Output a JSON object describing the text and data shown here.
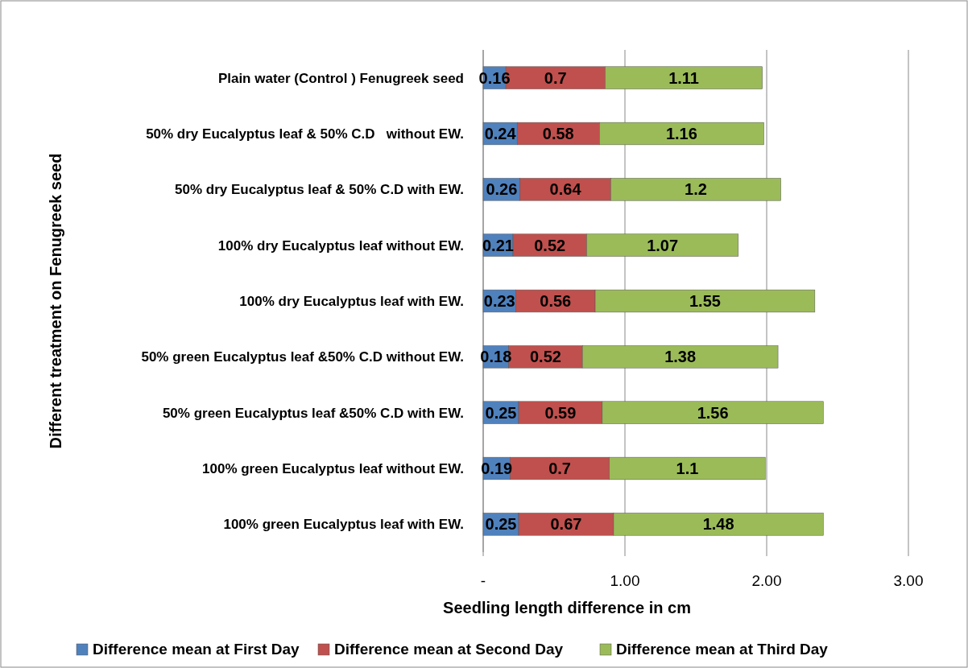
{
  "chart_data": {
    "type": "bar",
    "orientation": "horizontal",
    "stacked": true,
    "xlabel": "Seedling length difference in cm",
    "ylabel": "Different treatment on Fenugreek seed",
    "categories": [
      "Plain water (Control ) Fenugreek seed",
      "50% dry Eucalyptus leaf & 50% C.D   without EW.",
      "50% dry Eucalyptus leaf & 50% C.D with EW.",
      "100% dry Eucalyptus leaf without EW.",
      "100% dry Eucalyptus leaf with EW.",
      "50% green Eucalyptus leaf &50% C.D without EW.",
      "50% green Eucalyptus leaf &50% C.D with EW.",
      "100% green Eucalyptus leaf without EW.",
      "100% green Eucalyptus leaf with EW."
    ],
    "series": [
      {
        "name": "Difference mean at First Day",
        "color": "#4f81bd",
        "values": [
          0.16,
          0.24,
          0.26,
          0.21,
          0.23,
          0.18,
          0.25,
          0.19,
          0.25
        ]
      },
      {
        "name": "Difference mean at Second Day",
        "color": "#c0504d",
        "values": [
          0.7,
          0.58,
          0.64,
          0.52,
          0.56,
          0.52,
          0.59,
          0.7,
          0.67
        ]
      },
      {
        "name": "Difference mean at Third Day",
        "color": "#9bbb59",
        "values": [
          1.11,
          1.16,
          1.2,
          1.07,
          1.55,
          1.38,
          1.56,
          1.1,
          1.48
        ]
      }
    ],
    "xlim": [
      0,
      3
    ],
    "xticks": [
      {
        "value": 0,
        "label": "-"
      },
      {
        "value": 1,
        "label": "1.00"
      },
      {
        "value": 2,
        "label": "2.00"
      },
      {
        "value": 3,
        "label": "3.00"
      }
    ],
    "grid": "x",
    "legend": "bottom",
    "data_labels": true
  }
}
